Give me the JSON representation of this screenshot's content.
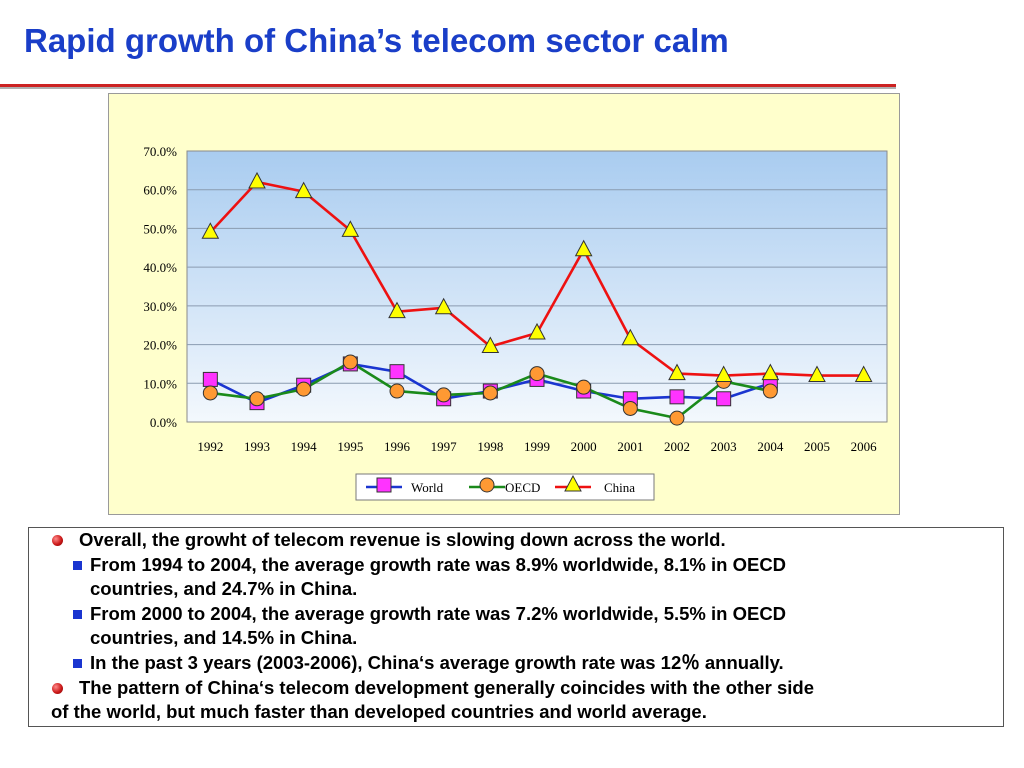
{
  "slide": {
    "title": "Rapid growth of China’s telecom sector calm"
  },
  "chart_data": {
    "type": "line",
    "x": [
      "1992",
      "1993",
      "1994",
      "1995",
      "1996",
      "1997",
      "1998",
      "1999",
      "2000",
      "2001",
      "2002",
      "2003",
      "2004",
      "2005",
      "2006"
    ],
    "yticks": [
      "70.0%",
      "60.0%",
      "50.0%",
      "40.0%",
      "30.0%",
      "20.0%",
      "10.0%",
      "0.0%"
    ],
    "ylim": [
      0,
      70
    ],
    "grid": true,
    "legend_position": "bottom-center",
    "series": [
      {
        "name": "World",
        "color": "#1a35d0",
        "marker": "square",
        "marker_color": "#ff33ff",
        "values": [
          11.0,
          5.0,
          9.5,
          15.0,
          13.0,
          6.0,
          8.0,
          11.0,
          8.0,
          6.0,
          6.5,
          6.0,
          10.0,
          null,
          null
        ]
      },
      {
        "name": "OECD",
        "color": "#1a8a1a",
        "marker": "circle",
        "marker_color": "#ff9933",
        "values": [
          7.5,
          6.0,
          8.5,
          15.5,
          8.0,
          7.0,
          7.5,
          12.5,
          9.0,
          3.5,
          1.0,
          10.5,
          8.0,
          null,
          null
        ]
      },
      {
        "name": "China",
        "color": "#ee1111",
        "marker": "triangle",
        "marker_color": "#ffff00",
        "values": [
          49.0,
          62.0,
          59.5,
          49.5,
          28.5,
          29.5,
          19.5,
          23.0,
          44.5,
          21.5,
          12.5,
          12.0,
          12.5,
          12.0,
          12.0
        ]
      }
    ]
  },
  "text_box": {
    "bullet1": "Overall, the growht of telecom revenue is slowing down across the world.",
    "sub1_line1": "From 1994 to 2004, the average growth rate was 8.9% worldwide, 8.1% in OECD",
    "sub1_line2": "countries, and 24.7% in China.",
    "sub2_line1": "From 2000 to 2004, the average growth rate was 7.2% worldwide, 5.5% in OECD",
    "sub2_line2": "countries, and 14.5% in China.",
    "sub3": "In the past 3 years (2003-2006), China‘s average growth rate was 12％ annually.",
    "bullet2_line1": "The pattern of China‘s telecom development generally coincides with the other side",
    "bullet2_line2": "of the world, but much faster than developed countries and world average."
  }
}
